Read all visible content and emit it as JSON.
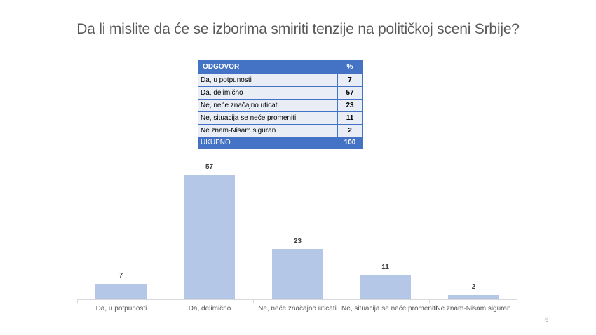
{
  "slide": {
    "title": "Da li mislite da će se izborima smiriti tenzije na političkoj sceni Srbije?",
    "page_number": "6"
  },
  "table": {
    "header": {
      "answer": "ODGOVOR",
      "percent": "%"
    },
    "rows": [
      {
        "answer": "Da, u potpunosti",
        "percent": "7"
      },
      {
        "answer": "Da, delimično",
        "percent": "57"
      },
      {
        "answer": "Ne, neće značajno uticati",
        "percent": "23"
      },
      {
        "answer": "Ne, situacija se neće promeniti",
        "percent": "11"
      },
      {
        "answer": "Ne znam-Nisam siguran",
        "percent": "2"
      }
    ],
    "footer": {
      "answer": "UKUPNO",
      "percent": "100"
    },
    "colors": {
      "header_bg": "#4472c4",
      "row_bg": "#e9edf6"
    }
  },
  "chart_data": {
    "type": "bar",
    "title": "Da li mislite da će se izborima smiriti tenzije na političkoj sceni Srbije?",
    "categories": [
      "Da, u potpunosti",
      "Da, delimično",
      "Ne, neće značajno uticati",
      "Ne, situacija se neće promeniti",
      "Ne znam-Nisam siguran"
    ],
    "values": [
      7,
      57,
      23,
      11,
      2
    ],
    "value_labels": [
      "7",
      "57",
      "23",
      "11",
      "2"
    ],
    "xlabel": "",
    "ylabel": "",
    "ylim": [
      0,
      60
    ],
    "grid": false,
    "legend": null,
    "bar_color": "#b4c7e7"
  }
}
